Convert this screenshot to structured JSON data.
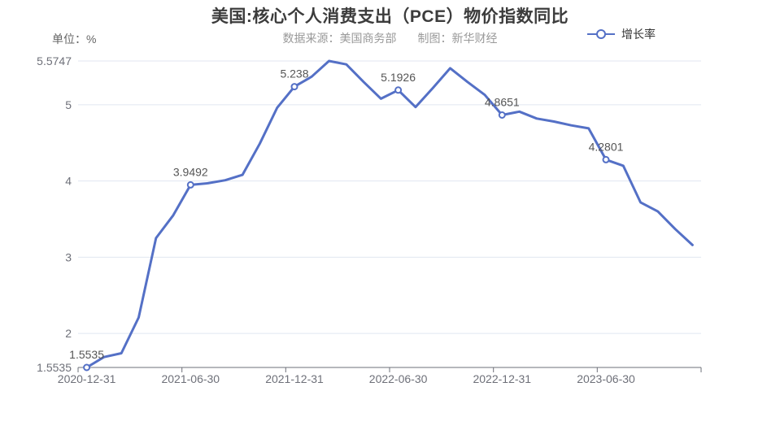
{
  "header": {
    "title": "美国:核心个人消费支出（PCE）物价指数同比",
    "data_source": "数据来源：美国商务部",
    "chart_maker": "制图：新华财经",
    "unit_label": "单位：%"
  },
  "legend": {
    "label": "增长率",
    "color": "#5470c6"
  },
  "colors": {
    "line": "#5470c6",
    "marker_fill": "#ffffff",
    "grid": "#e0e6f1",
    "axis": "#6e7079",
    "tick_label": "#6e7079",
    "data_label": "#555555",
    "title": "#3c3c3c",
    "subtitle": "#999999",
    "unit": "#666666",
    "legend_text": "#333333"
  },
  "chart_data": {
    "type": "line",
    "title": "美国:核心个人消费支出（PCE）物价指数同比",
    "ylabel": "单位：%",
    "xlabel": "",
    "grid": true,
    "legend_position": "top-right",
    "ylim": [
      1.5535,
      5.5747
    ],
    "x": [
      "2020-12-31",
      "2021-01-31",
      "2021-02-28",
      "2021-03-31",
      "2021-04-30",
      "2021-05-31",
      "2021-06-30",
      "2021-07-31",
      "2021-08-31",
      "2021-09-30",
      "2021-10-31",
      "2021-11-30",
      "2021-12-31",
      "2022-01-31",
      "2022-02-28",
      "2022-03-31",
      "2022-04-30",
      "2022-05-31",
      "2022-06-30",
      "2022-07-31",
      "2022-08-31",
      "2022-09-30",
      "2022-10-31",
      "2022-11-30",
      "2022-12-31",
      "2023-01-31",
      "2023-02-28",
      "2023-03-31",
      "2023-04-30",
      "2023-05-31",
      "2023-06-30",
      "2023-07-31",
      "2023-08-31",
      "2023-09-30",
      "2023-10-31",
      "2023-11-30"
    ],
    "series": [
      {
        "name": "增长率",
        "color": "#5470c6",
        "values": [
          1.5535,
          1.69,
          1.74,
          2.21,
          3.25,
          3.55,
          3.9492,
          3.97,
          4.01,
          4.08,
          4.49,
          4.96,
          5.238,
          5.37,
          5.5747,
          5.53,
          5.3,
          5.08,
          5.1926,
          4.97,
          5.22,
          5.48,
          5.3,
          5.13,
          4.8651,
          4.91,
          4.82,
          4.78,
          4.73,
          4.69,
          4.2801,
          4.2,
          3.72,
          3.6,
          3.37,
          3.16
        ]
      }
    ],
    "x_tick_indices": [
      0,
      6,
      12,
      18,
      24,
      30
    ],
    "labeled_point_indices": [
      0,
      6,
      12,
      18,
      24,
      30
    ],
    "labeled_point_values": [
      "1.5535",
      "3.9492",
      "5.238",
      "5.1926",
      "4.8651",
      "4.2801"
    ],
    "y_ticks": [
      5.5747,
      5,
      4,
      3,
      2,
      1.5535
    ],
    "y_tick_labels": [
      "5.5747",
      "5",
      "4",
      "3",
      "2",
      "1.5535"
    ]
  }
}
